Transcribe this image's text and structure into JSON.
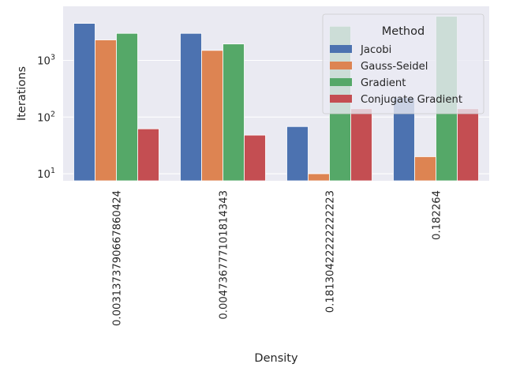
{
  "chart_data": {
    "type": "bar",
    "xlabel": "Density",
    "ylabel": "Iterations",
    "yscale": "log",
    "ylim": [
      7.5,
      9000
    ],
    "grid": true,
    "legend_placement": "top-right",
    "legend_title": "Method",
    "categories": [
      "0.0031373790667860424",
      "0.004736777101814343",
      "0.18130422222222223",
      "0.182264"
    ],
    "series": [
      {
        "name": "Jacobi",
        "color": "#4c72b0",
        "values": [
          4500,
          3000,
          68,
          220
        ]
      },
      {
        "name": "Gauss-Seidel",
        "color": "#dd8452",
        "values": [
          2300,
          1500,
          10,
          20
        ]
      },
      {
        "name": "Gradient",
        "color": "#55a868",
        "values": [
          3000,
          1950,
          4000,
          6000
        ]
      },
      {
        "name": "Conjugate Gradient",
        "color": "#c44e52",
        "values": [
          62,
          48,
          140,
          140
        ]
      }
    ],
    "yticks": [
      {
        "value": 10,
        "base": "10",
        "exp": "1"
      },
      {
        "value": 100,
        "base": "10",
        "exp": "2"
      },
      {
        "value": 1000,
        "base": "10",
        "exp": "3"
      }
    ]
  }
}
